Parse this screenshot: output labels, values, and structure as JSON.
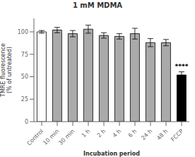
{
  "chart_data": {
    "type": "bar",
    "title": "1 mM MDMA",
    "categories": [
      "Control",
      "10 min",
      "30 min",
      "1 h",
      "2 h",
      "4 h",
      "6 h",
      "24 h",
      "48 h",
      "FCCP"
    ],
    "values": [
      100,
      102,
      98,
      103,
      96,
      95,
      98,
      88,
      88,
      52
    ],
    "errors": [
      1.5,
      3.0,
      3.5,
      4.5,
      3.0,
      3.0,
      6.0,
      4.5,
      3.5,
      3.5
    ],
    "colors": [
      "white",
      "#aaaaaa",
      "#aaaaaa",
      "#aaaaaa",
      "#aaaaaa",
      "#aaaaaa",
      "#aaaaaa",
      "#aaaaaa",
      "#aaaaaa",
      "black"
    ],
    "xlabel": "Incubation period",
    "ylabel": "TMRE fluorescence\n(% of untreated)",
    "ylim": [
      0,
      115
    ],
    "yticks": [
      0,
      25,
      50,
      75,
      100
    ],
    "grid": false,
    "annotations": [
      {
        "text": "****",
        "category": "FCCP"
      }
    ]
  }
}
